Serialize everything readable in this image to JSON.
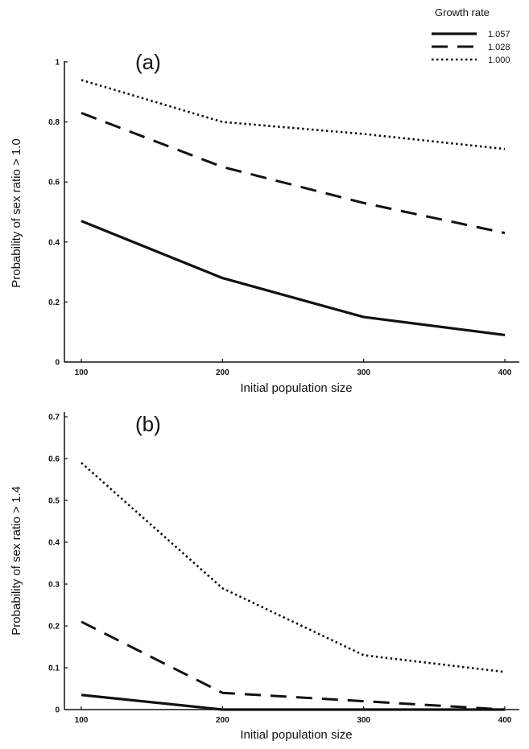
{
  "legend": {
    "title": "Growth rate",
    "entries": [
      {
        "label": "1.057",
        "style": "solid"
      },
      {
        "label": "1.028",
        "style": "dashed"
      },
      {
        "label": "1.000",
        "style": "dotted"
      }
    ]
  },
  "chart_data": [
    {
      "type": "line",
      "panel_label": "(a)",
      "xlabel": "Initial population size",
      "ylabel": "Probability of sex ratio > 1.0",
      "x": [
        100,
        200,
        300,
        400
      ],
      "xlim": [
        100,
        400
      ],
      "ylim": [
        0,
        1
      ],
      "xticks": [
        "100",
        "200",
        "300",
        "400"
      ],
      "yticks": [
        "0",
        "0.2",
        "0.4",
        "0.6",
        "0.8",
        "1"
      ],
      "grid": false,
      "series": [
        {
          "name": "1.057",
          "style": "solid",
          "values": [
            0.47,
            0.28,
            0.15,
            0.09
          ]
        },
        {
          "name": "1.028",
          "style": "dashed",
          "values": [
            0.83,
            0.65,
            0.53,
            0.43
          ]
        },
        {
          "name": "1.000",
          "style": "dotted",
          "values": [
            0.94,
            0.8,
            0.76,
            0.71
          ]
        }
      ]
    },
    {
      "type": "line",
      "panel_label": "(b)",
      "xlabel": "Initial population size",
      "ylabel": "Probability of sex ratio > 1.4",
      "x": [
        100,
        200,
        300,
        400
      ],
      "xlim": [
        100,
        400
      ],
      "ylim": [
        0,
        0.7
      ],
      "xticks": [
        "100",
        "200",
        "300",
        "400"
      ],
      "yticks": [
        "0",
        "0.1",
        "0.2",
        "0.3",
        "0.4",
        "0.5",
        "0.6",
        "0.7"
      ],
      "grid": false,
      "series": [
        {
          "name": "1.057",
          "style": "solid",
          "values": [
            0.035,
            0.0,
            0.0,
            0.0
          ]
        },
        {
          "name": "1.028",
          "style": "dashed",
          "values": [
            0.21,
            0.04,
            0.02,
            0.0
          ]
        },
        {
          "name": "1.000",
          "style": "dotted",
          "values": [
            0.59,
            0.29,
            0.13,
            0.09
          ]
        }
      ]
    }
  ]
}
